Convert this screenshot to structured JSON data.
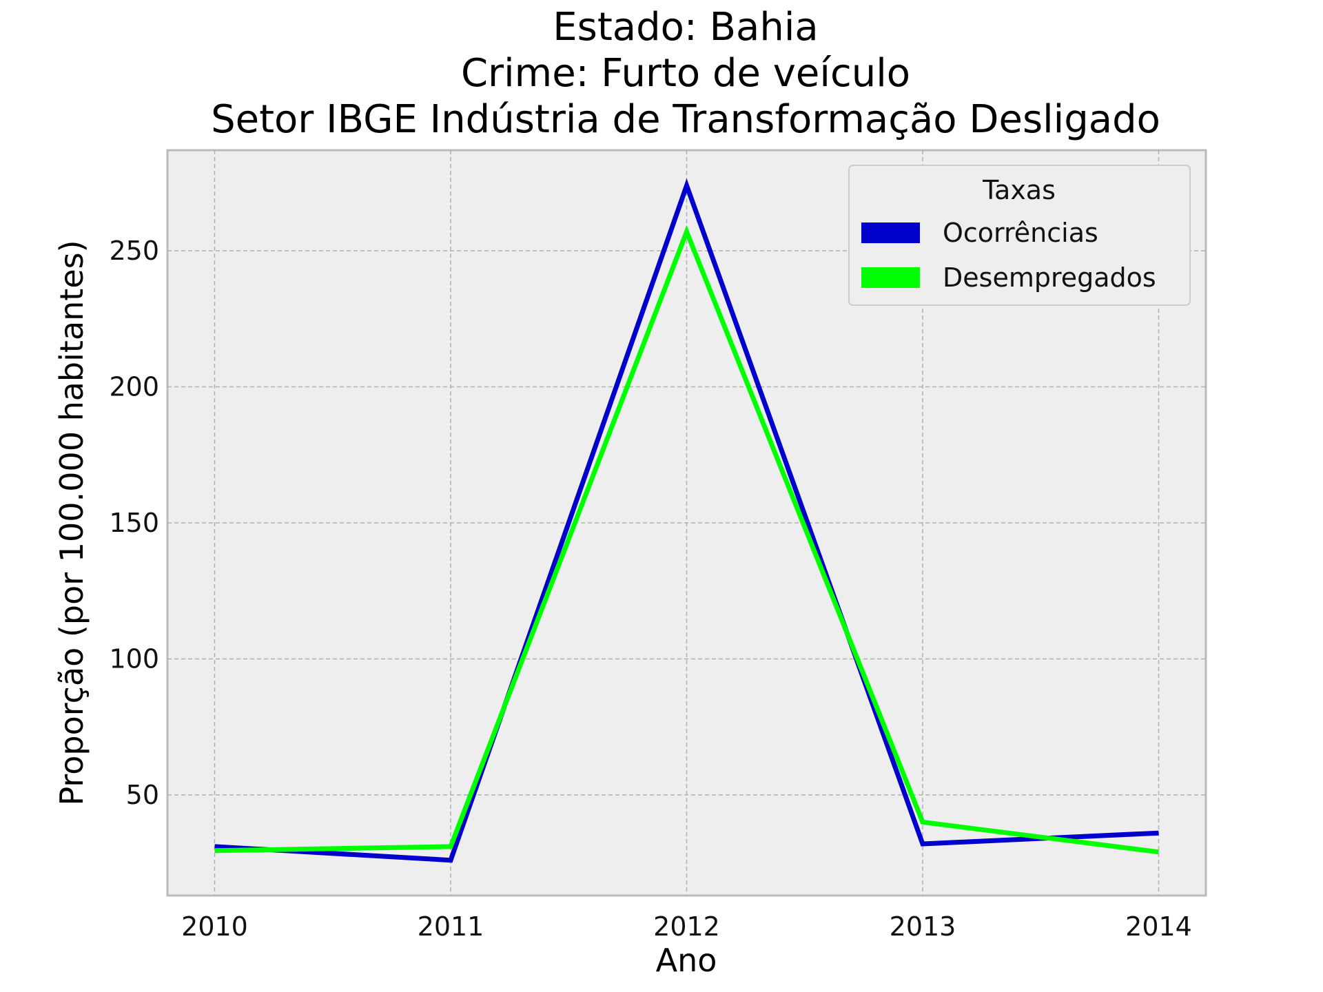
{
  "chart_data": {
    "type": "line",
    "title_lines": [
      "Estado: Bahia",
      "Crime: Furto de veículo",
      "Setor IBGE  Indústria de Transformação   Desligado"
    ],
    "xlabel": "Ano",
    "ylabel": "Proporção (por 100.000 habitantes)",
    "x": [
      "2010",
      "2011",
      "2012",
      "2013",
      "2014"
    ],
    "xlim": [
      -0.2,
      4.2
    ],
    "ylim": [
      13,
      287
    ],
    "yticks": [
      50,
      100,
      150,
      200,
      250
    ],
    "grid": true,
    "legend": {
      "title": "Taxas",
      "position": "top-right"
    },
    "series": [
      {
        "name": "Ocorrências",
        "color": "#0000cc",
        "values": [
          31,
          26,
          274,
          32,
          36
        ]
      },
      {
        "name": "Desempregados",
        "color": "#00ff00",
        "values": [
          29.5,
          31,
          257,
          40,
          29
        ]
      }
    ]
  }
}
